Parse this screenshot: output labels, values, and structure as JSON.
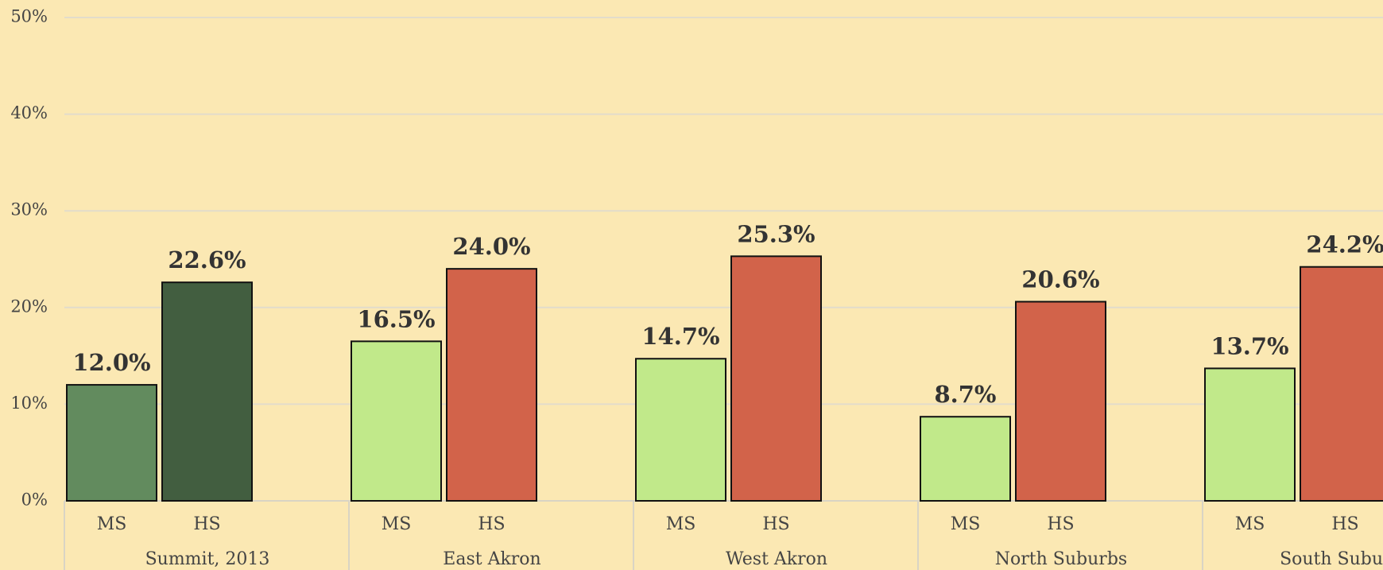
{
  "chart_data": {
    "type": "bar",
    "categories": [
      "Summit, 2013",
      "East Akron",
      "West Akron",
      "North Suburbs",
      "South Suburbs"
    ],
    "series": [
      {
        "name": "MS",
        "color": "#c1e98a",
        "highlight_color": "#628b5e",
        "values": [
          12.0,
          16.5,
          14.7,
          8.7,
          13.7
        ],
        "value_labels": [
          "12.0%",
          "16.5%",
          "14.7%",
          "8.7%",
          "13.7%"
        ]
      },
      {
        "name": "HS",
        "color": "#d2634a",
        "highlight_color": "#425e40",
        "values": [
          22.6,
          24.0,
          25.3,
          20.6,
          24.2
        ],
        "value_labels": [
          "22.6%",
          "24.0%",
          "25.3%",
          "20.6%",
          "24.2%"
        ]
      }
    ],
    "highlight_category": 0,
    "ylim": [
      0,
      50
    ],
    "yticks": [
      {
        "value": 0,
        "label": "0%"
      },
      {
        "value": 10,
        "label": "10%"
      },
      {
        "value": 20,
        "label": "20%"
      },
      {
        "value": 30,
        "label": "30%"
      },
      {
        "value": 40,
        "label": "40%"
      },
      {
        "value": 50,
        "label": "50%"
      }
    ],
    "grid": true
  }
}
